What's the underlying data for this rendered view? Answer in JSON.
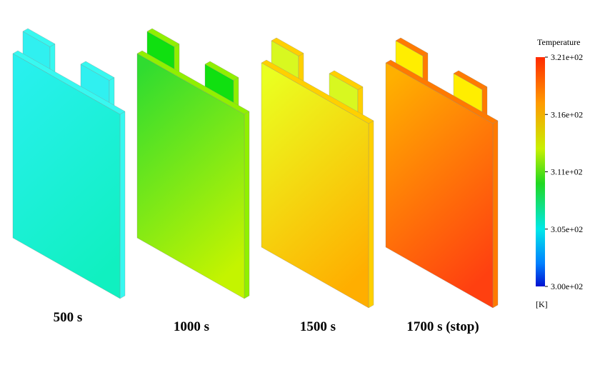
{
  "panels": [
    {
      "label": "500 s"
    },
    {
      "label": "1000 s"
    },
    {
      "label": "1500 s"
    },
    {
      "label": "1700 s (stop)"
    }
  ],
  "colorbar": {
    "title": "Temperature",
    "ticks": [
      "3.21e+02",
      "3.16e+02",
      "3.11e+02",
      "3.05e+02",
      "3.00e+02"
    ],
    "unit": "[K]"
  }
}
